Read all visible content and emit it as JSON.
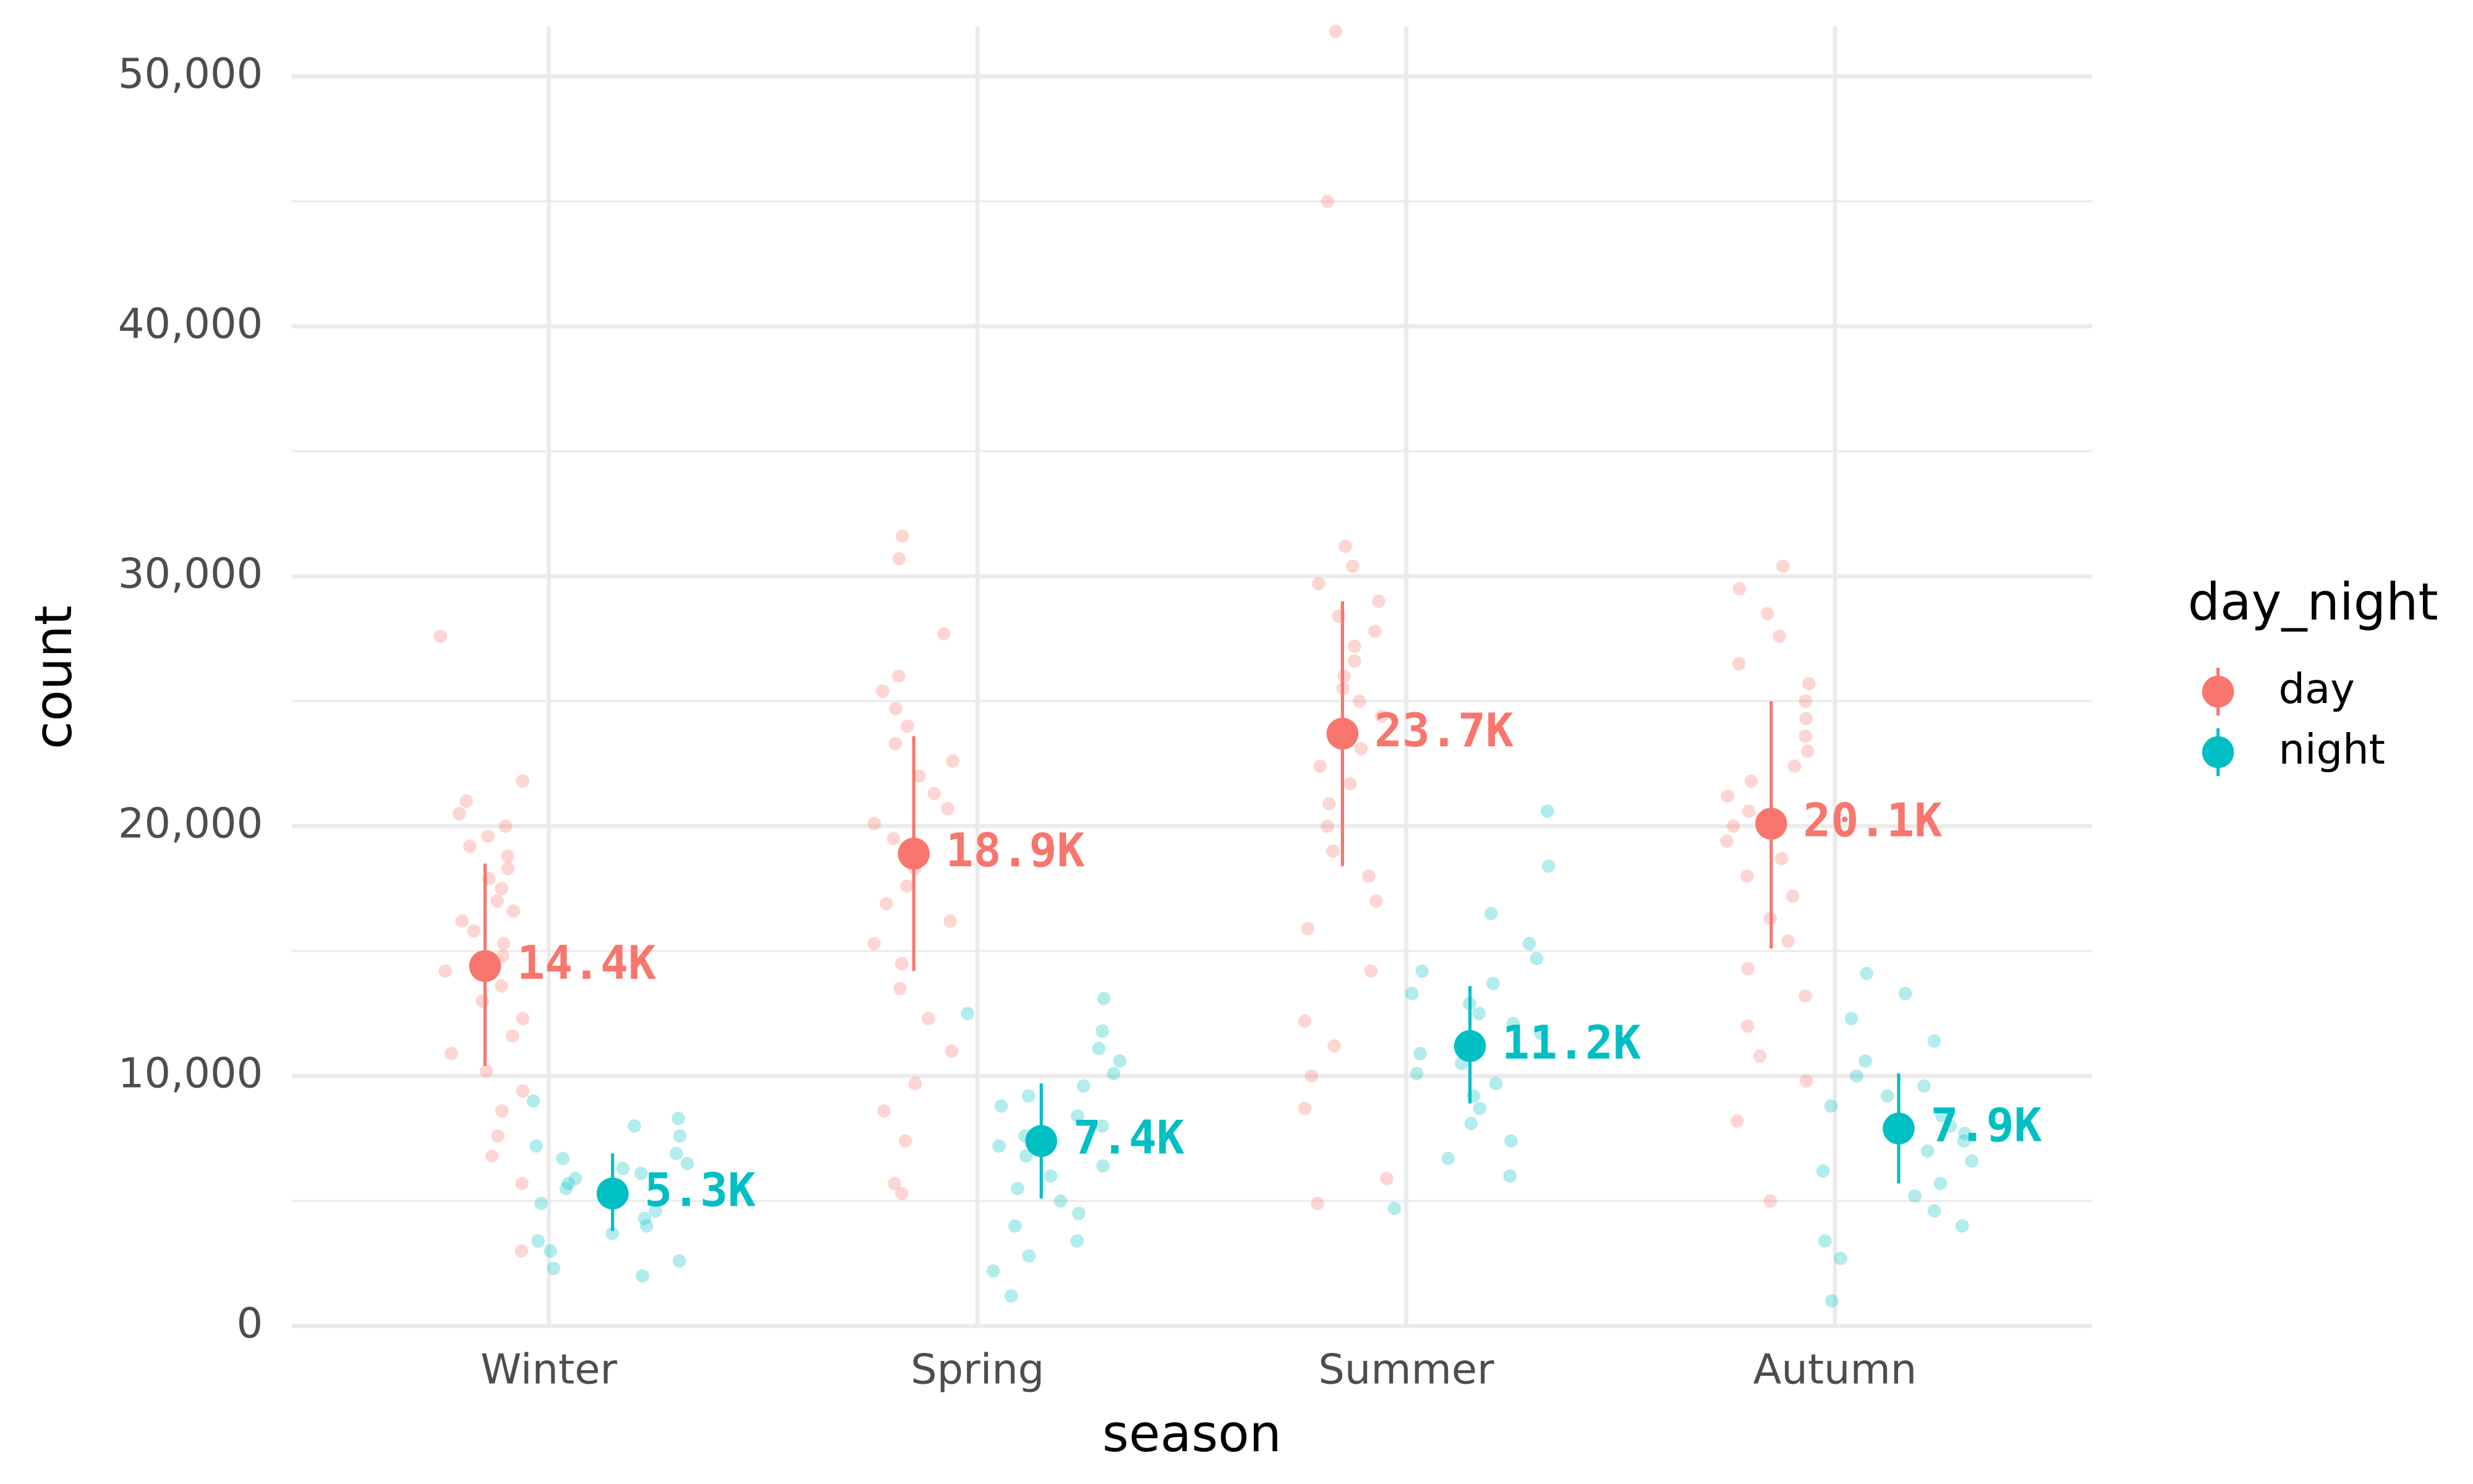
{
  "chart_data": {
    "type": "jitter",
    "x_label": "season",
    "y_label": "count",
    "legend_title": "day_night",
    "legend_position": "right",
    "grid": true,
    "categories": [
      "Winter",
      "Spring",
      "Summer",
      "Autumn"
    ],
    "ylim": [
      0,
      52000
    ],
    "yticks": [
      {
        "value": 0,
        "label": "0"
      },
      {
        "value": 10000,
        "label": "10,000"
      },
      {
        "value": 20000,
        "label": "20,000"
      },
      {
        "value": 30000,
        "label": "30,000"
      },
      {
        "value": 40000,
        "label": "40,000"
      },
      {
        "value": 50000,
        "label": "50,000"
      }
    ],
    "minor_yticks": [
      5000,
      15000,
      25000,
      35000,
      45000
    ],
    "series": [
      {
        "name": "day",
        "color": "#f8766d",
        "values": [
          14400,
          18900,
          23700,
          20100
        ],
        "value_labels": [
          "14.4K",
          "18.9K",
          "23.7K",
          "20.1K"
        ],
        "lower": [
          10400,
          14200,
          18400,
          15100
        ],
        "upper": [
          18500,
          23600,
          29000,
          25000
        ],
        "points": [
          [
            27600,
            21800,
            21000,
            20500,
            20000,
            19600,
            19200,
            18800,
            18300,
            17900,
            17500,
            17000,
            16600,
            16200,
            15800,
            15300,
            14800,
            14200,
            13600,
            13000,
            12300,
            11600,
            10900,
            10200,
            9400,
            8600,
            7600,
            6800,
            5700,
            3000
          ],
          [
            31600,
            30700,
            27700,
            26000,
            25400,
            24700,
            24000,
            23300,
            22600,
            22000,
            21300,
            20700,
            20100,
            19500,
            18900,
            18300,
            17600,
            16900,
            16200,
            15300,
            14500,
            13500,
            12300,
            11000,
            9700,
            8600,
            7400,
            5700,
            5300
          ],
          [
            51800,
            45000,
            31200,
            30400,
            29700,
            29000,
            28400,
            27800,
            27200,
            26600,
            26000,
            25500,
            25000,
            24400,
            23800,
            23100,
            22400,
            21700,
            20900,
            20000,
            19000,
            18000,
            17000,
            15900,
            14200,
            12200,
            11200,
            10000,
            8700,
            5900,
            4900
          ],
          [
            30400,
            29500,
            28500,
            27600,
            26500,
            25700,
            25000,
            24300,
            23600,
            23000,
            22400,
            21800,
            21200,
            20600,
            20000,
            19400,
            18700,
            18000,
            17200,
            16300,
            15400,
            14300,
            13200,
            12000,
            10800,
            9800,
            8200,
            5000
          ]
        ]
      },
      {
        "name": "night",
        "color": "#00bfc4",
        "values": [
          5300,
          7400,
          11200,
          7900
        ],
        "value_labels": [
          "5.3K",
          "7.4K",
          "11.2K",
          "7.9K"
        ],
        "lower": [
          3800,
          5100,
          8900,
          5700
        ],
        "upper": [
          6900,
          9700,
          13600,
          10100
        ],
        "points": [
          [
            9000,
            8300,
            8000,
            7600,
            7200,
            6900,
            6700,
            6500,
            6300,
            6100,
            5900,
            5700,
            5500,
            5200,
            4900,
            4600,
            4300,
            4000,
            3700,
            3400,
            3000,
            2600,
            2300,
            2000
          ],
          [
            13100,
            12500,
            11800,
            11100,
            10600,
            10100,
            9600,
            9200,
            8800,
            8400,
            8000,
            7600,
            7200,
            6800,
            6400,
            6000,
            5500,
            5000,
            4500,
            4000,
            3400,
            2800,
            2200,
            1200
          ],
          [
            20600,
            18400,
            16500,
            15300,
            14700,
            14200,
            13700,
            13300,
            12900,
            12500,
            12100,
            11700,
            11300,
            10900,
            10500,
            10100,
            9700,
            9200,
            8700,
            8100,
            7400,
            6700,
            6000,
            4700
          ],
          [
            14100,
            13300,
            12300,
            11400,
            10600,
            10000,
            9600,
            9200,
            8800,
            8400,
            8000,
            7700,
            7400,
            7000,
            6600,
            6200,
            5700,
            5200,
            4600,
            4000,
            3400,
            2700,
            1000
          ]
        ]
      }
    ]
  }
}
